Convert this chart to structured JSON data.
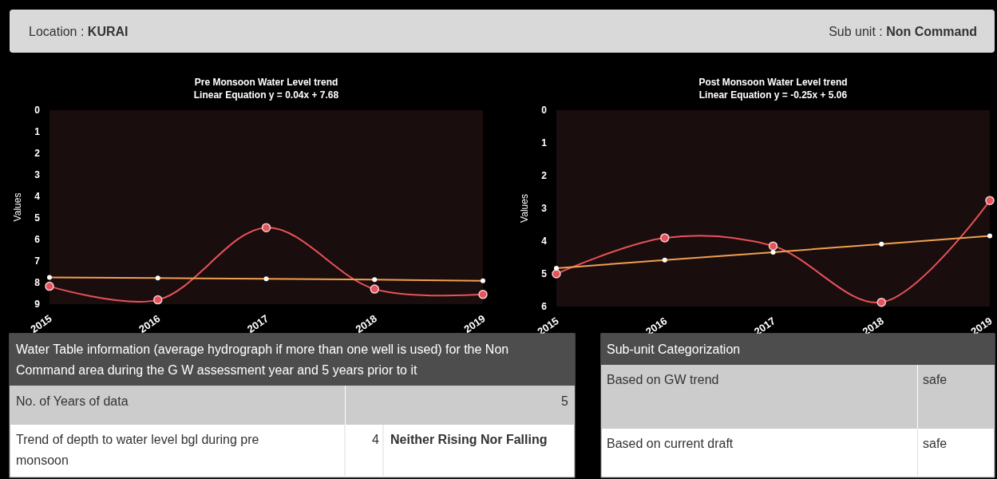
{
  "chart_data": [
    {
      "type": "other",
      "annotations": [
        "Location :",
        "KURAI",
        "Sub unit :",
        "Non Command"
      ]
    },
    {
      "type": "line",
      "title": "Pre Monsoon Water Level trend",
      "subtitle": "Linear Equation y = 0.04x + 7.68",
      "ylabel": "Values",
      "categories": [
        "2015",
        "2016",
        "2017",
        "2018",
        "2019"
      ],
      "ylim": [
        9,
        0
      ],
      "yticks": [
        0,
        1,
        2,
        3,
        4,
        5,
        6,
        7,
        8,
        9
      ],
      "series": [
        {
          "color": "#e8525a",
          "marker": "circle",
          "values": [
            8.17,
            8.8,
            5.45,
            8.3,
            8.55
          ]
        },
        {
          "color": "#f0a050",
          "marker": "circle",
          "values": [
            7.76,
            7.79,
            7.82,
            7.86,
            7.92
          ]
        }
      ]
    },
    {
      "type": "line",
      "title": "Post Monsoon Water Level trend",
      "subtitle": "Linear Equation y = -0.25x + 5.06",
      "ylabel": "Values",
      "categories": [
        "2015",
        "2016",
        "2017",
        "2018",
        "2019"
      ],
      "ylim": [
        6,
        0
      ],
      "yticks": [
        0,
        1,
        2,
        3,
        4,
        5,
        6
      ],
      "series": [
        {
          "color": "#e8525a",
          "marker": "circle",
          "values": [
            5.0,
            3.9,
            4.15,
            5.87,
            2.76
          ]
        },
        {
          "color": "#f0a050",
          "marker": "circle",
          "values": [
            4.83,
            4.58,
            4.34,
            4.09,
            3.84
          ]
        }
      ]
    },
    {
      "type": "other",
      "title": "Water Table information (average hydrograph if more than one well is used) for the Non Command area during the G W assessment year and 5 years prior to it",
      "annotations": [
        "No. of Years of data",
        "5",
        "Trend of depth to water level bgl during pre monsoon",
        "4",
        "Neither Rising Nor Falling"
      ]
    },
    {
      "type": "other",
      "title": "Sub-unit Categorization",
      "annotations": [
        "Based on GW trend",
        "safe",
        "Based on current draft",
        "safe"
      ]
    }
  ]
}
